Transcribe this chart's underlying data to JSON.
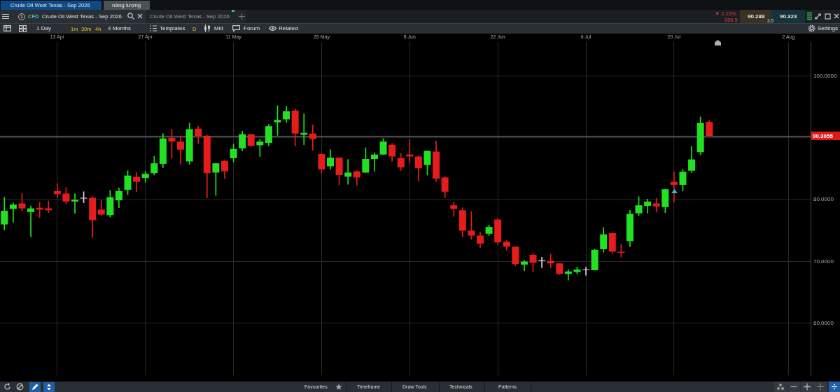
{
  "chart_data": {
    "type": "candlestick",
    "title": "Crude Oil West Texas - Sep 2026",
    "categories": [
      null,
      null,
      null,
      null,
      null,
      null,
      "13 Apr",
      null,
      null,
      null,
      null,
      null,
      null,
      null,
      null,
      null,
      "27 Apr",
      null,
      null,
      null,
      null,
      null,
      null,
      null,
      null,
      null,
      "11 May",
      null,
      null,
      null,
      null,
      null,
      null,
      null,
      null,
      null,
      "25 May",
      null,
      null,
      null,
      null,
      null,
      null,
      null,
      null,
      null,
      "8 Jun",
      null,
      null,
      null,
      null,
      null,
      null,
      null,
      null,
      null,
      "22 Jun",
      null,
      null,
      null,
      null,
      null,
      null,
      null,
      null,
      null,
      "6 Jul",
      null,
      null,
      null,
      null,
      null,
      null,
      null,
      null,
      null,
      "20 Jul",
      null,
      null,
      null,
      null,
      null,
      null,
      null,
      null,
      null,
      null,
      null,
      null,
      "2 Aug",
      null,
      null
    ],
    "ohlc": [
      [
        76.0,
        80.4,
        75.1,
        78.2
      ],
      [
        78.5,
        79.5,
        76.3,
        79.2
      ],
      [
        79.4,
        81.0,
        78.2,
        78.6
      ],
      [
        78.0,
        79.0,
        74.0,
        78.6
      ],
      [
        78.7,
        79.6,
        77.1,
        78.4
      ],
      [
        78.6,
        79.8,
        77.9,
        78.3
      ],
      [
        81.4,
        82.6,
        80.3,
        80.9
      ],
      [
        81.0,
        82.0,
        79.3,
        79.7
      ],
      [
        79.7,
        81.0,
        77.8,
        80.0
      ],
      [
        80.2,
        81.3,
        79.5,
        80.2
      ],
      [
        80.3,
        80.5,
        73.9,
        76.7
      ],
      [
        78.4,
        79.9,
        77.5,
        77.6
      ],
      [
        77.5,
        81.5,
        77.2,
        80.4
      ],
      [
        79.9,
        81.9,
        78.7,
        81.4
      ],
      [
        81.6,
        84.7,
        80.8,
        83.9
      ],
      [
        83.7,
        84.4,
        81.3,
        82.9
      ],
      [
        83.5,
        84.6,
        82.8,
        84.2
      ],
      [
        84.3,
        87.0,
        84.0,
        85.9
      ],
      [
        85.8,
        90.7,
        85.2,
        89.9
      ],
      [
        90.0,
        91.4,
        86.7,
        89.4
      ],
      [
        89.4,
        90.3,
        85.7,
        88.1
      ],
      [
        86.2,
        92.4,
        85.7,
        91.4
      ],
      [
        91.5,
        91.9,
        89.1,
        90.3
      ],
      [
        90.3,
        90.4,
        80.3,
        84.3
      ],
      [
        84.4,
        85.9,
        80.7,
        85.9
      ],
      [
        86.3,
        86.4,
        83.4,
        84.6
      ],
      [
        86.7,
        89.0,
        86.1,
        88.2
      ],
      [
        88.3,
        91.1,
        87.9,
        90.6
      ],
      [
        90.6,
        90.6,
        88.6,
        88.7
      ],
      [
        88.8,
        89.8,
        87.0,
        89.4
      ],
      [
        89.2,
        92.2,
        88.7,
        91.9
      ],
      [
        92.5,
        95.2,
        90.4,
        92.9
      ],
      [
        93.0,
        95.1,
        92.5,
        94.3
      ],
      [
        94.4,
        94.7,
        88.7,
        90.7
      ],
      [
        90.5,
        93.9,
        88.9,
        90.8
      ],
      [
        90.7,
        92.1,
        88.0,
        89.8
      ],
      [
        87.4,
        87.4,
        84.3,
        84.9
      ],
      [
        85.4,
        88.1,
        84.9,
        86.8
      ],
      [
        86.8,
        86.8,
        82.4,
        84.0
      ],
      [
        83.7,
        86.5,
        82.5,
        84.4
      ],
      [
        84.6,
        84.7,
        82.3,
        83.6
      ],
      [
        84.4,
        88.4,
        84.4,
        86.6
      ],
      [
        86.6,
        87.6,
        84.6,
        87.3
      ],
      [
        87.3,
        89.9,
        87.3,
        89.4
      ],
      [
        88.9,
        89.1,
        86.2,
        87.0
      ],
      [
        86.7,
        87.5,
        84.7,
        85.2
      ],
      [
        87.3,
        89.8,
        86.0,
        87.0
      ],
      [
        87.0,
        87.1,
        83.0,
        85.1
      ],
      [
        85.6,
        87.9,
        84.0,
        87.9
      ],
      [
        87.8,
        89.5,
        82.9,
        83.4
      ],
      [
        83.6,
        83.8,
        80.3,
        81.3
      ],
      [
        79.1,
        79.6,
        77.3,
        78.5
      ],
      [
        78.3,
        78.7,
        74.0,
        75.0
      ],
      [
        75.0,
        78.1,
        73.6,
        74.2
      ],
      [
        74.2,
        74.8,
        72.2,
        72.9
      ],
      [
        74.5,
        75.9,
        74.2,
        75.6
      ],
      [
        76.8,
        77.0,
        72.7,
        73.1
      ],
      [
        73.2,
        73.4,
        71.8,
        72.4
      ],
      [
        72.4,
        72.4,
        69.3,
        69.6
      ],
      [
        69.5,
        70.2,
        68.5,
        70.0
      ],
      [
        71.1,
        71.3,
        68.3,
        69.8
      ],
      [
        70.1,
        70.7,
        69.0,
        70.1
      ],
      [
        70.1,
        71.2,
        69.0,
        69.7
      ],
      [
        69.7,
        69.7,
        67.9,
        68.0
      ],
      [
        68.0,
        68.7,
        67.0,
        68.4
      ],
      [
        68.3,
        69.1,
        68.0,
        68.7
      ],
      [
        68.6,
        69.1,
        67.8,
        68.6
      ],
      [
        68.6,
        72.0,
        68.6,
        71.9
      ],
      [
        72.0,
        75.5,
        71.5,
        74.4
      ],
      [
        74.6,
        74.6,
        71.3,
        71.6
      ],
      [
        71.6,
        72.8,
        70.7,
        71.4
      ],
      [
        73.3,
        78.3,
        72.4,
        77.7
      ],
      [
        77.8,
        80.5,
        77.4,
        79.1
      ],
      [
        79.0,
        80.1,
        77.8,
        79.7
      ],
      [
        79.4,
        80.2,
        78.0,
        78.9
      ],
      [
        78.8,
        81.7,
        77.9,
        81.7
      ],
      [
        82.9,
        84.5,
        79.6,
        82.4
      ],
      [
        82.4,
        84.9,
        81.4,
        84.5
      ],
      [
        84.7,
        88.6,
        84.4,
        86.5
      ],
      [
        87.7,
        93.4,
        87.3,
        92.4
      ],
      [
        92.6,
        92.8,
        90.3,
        90.3
      ],
      null,
      null,
      null,
      null,
      null,
      null,
      null,
      null,
      null,
      null,
      null
    ],
    "colors": [
      "#22e022",
      "#22e022",
      "#e51c1c",
      "#22e022",
      "#e51c1c",
      "#e51c1c",
      "#e51c1c",
      "#e51c1c",
      "#22e022",
      "#d9d9d9",
      "#e51c1c",
      "#e51c1c",
      "#22e022",
      "#22e022",
      "#22e022",
      "#e51c1c",
      "#22e022",
      "#22e022",
      "#22e022",
      "#e51c1c",
      "#e51c1c",
      "#22e022",
      "#e51c1c",
      "#e51c1c",
      "#22e022",
      "#e51c1c",
      "#22e022",
      "#22e022",
      "#e51c1c",
      "#22e022",
      "#22e022",
      "#22e022",
      "#22e022",
      "#e51c1c",
      "#22e022",
      "#e51c1c",
      "#e51c1c",
      "#22e022",
      "#e51c1c",
      "#22e022",
      "#e51c1c",
      "#22e022",
      "#22e022",
      "#22e022",
      "#e51c1c",
      "#e51c1c",
      "#e51c1c",
      "#e51c1c",
      "#22e022",
      "#e51c1c",
      "#e51c1c",
      "#e51c1c",
      "#e51c1c",
      "#e51c1c",
      "#e51c1c",
      "#22e022",
      "#e51c1c",
      "#e51c1c",
      "#e51c1c",
      "#22e022",
      "#e51c1c",
      "#d9d9d9",
      "#e51c1c",
      "#e51c1c",
      "#22e022",
      "#22e022",
      "#d9d9d9",
      "#22e022",
      "#22e022",
      "#e51c1c",
      "#e51c1c",
      "#22e022",
      "#22e022",
      "#22e022",
      "#e51c1c",
      "#22e022",
      "#e51c1c",
      "#22e022",
      "#22e022",
      "#22e022",
      "#e51c1c",
      null,
      null,
      null,
      null,
      null,
      null,
      null,
      null,
      null,
      null,
      null
    ],
    "ylim": [
      51.6,
      105.5
    ],
    "yticks": [
      {
        "value": 60,
        "label": "60.0000"
      },
      {
        "value": 70,
        "label": "70.0000"
      },
      {
        "value": 80,
        "label": "80.0000"
      },
      {
        "value": 90,
        "label": null
      },
      {
        "value": 100,
        "label": "100.0000"
      }
    ],
    "grid": true,
    "ref_lines": [
      {
        "axis": "y",
        "value": 90.3055,
        "label": "90.3055",
        "color": "#8c8c8c"
      }
    ],
    "annotations": [
      "Crude Oil West Texas - Sep 2026",
      "năng lượng",
      "1",
      "CFD",
      "Crude Oil West Texas - Sep 2026",
      "▼ 2.23%",
      "206.5",
      "90.288",
      "3.5",
      "90.323",
      "1 Day",
      "1m",
      "30m",
      "4h",
      "4 Months",
      "Templates",
      "D",
      "Mid",
      "Forum",
      "Related",
      "Settings",
      "Favourites",
      "Timeframe",
      "Draw Tools",
      "Technicals",
      "Patterns"
    ]
  }
}
